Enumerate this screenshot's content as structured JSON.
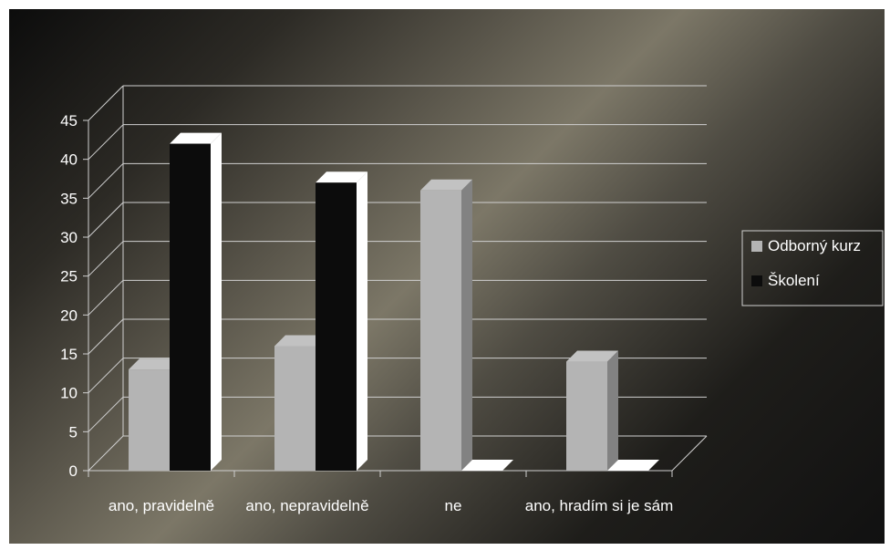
{
  "chart_data": {
    "type": "bar",
    "categories": [
      "ano, pravidelně",
      "ano, nepravidelně",
      "ne",
      "ano, hradím si je sám"
    ],
    "series": [
      {
        "name": "Odborný kurz",
        "values": [
          13,
          16,
          36,
          14
        ]
      },
      {
        "name": "Školení",
        "values": [
          42,
          37,
          0,
          0
        ]
      }
    ],
    "ylim": [
      0,
      45
    ],
    "yticks": [
      0,
      5,
      10,
      15,
      20,
      25,
      30,
      35,
      40,
      45
    ],
    "grid": true,
    "legend": "right",
    "three_d": true,
    "colors": {
      "Odborný kurz": "#b4b4b4",
      "Školení": "#0c0c0c",
      "gridline": "#d0d0d0",
      "text": "#ffffff"
    }
  }
}
